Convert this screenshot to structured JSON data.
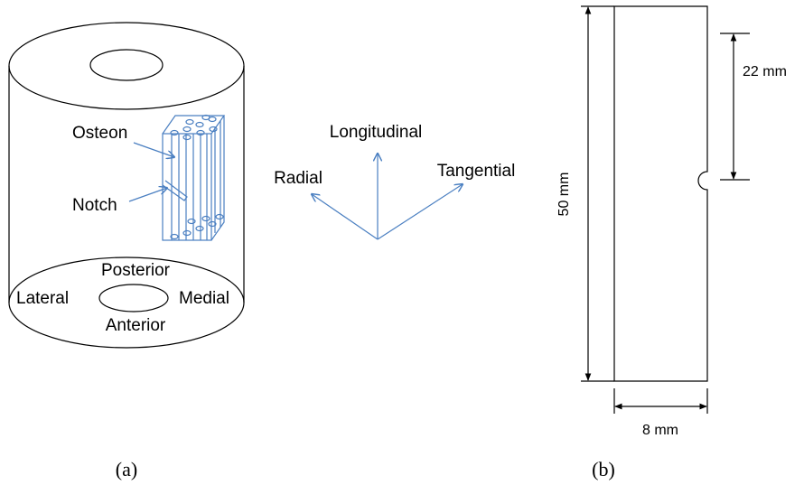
{
  "panel_a": {
    "labels": {
      "osteon": "Osteon",
      "notch": "Notch",
      "posterior": "Posterior",
      "lateral": "Lateral",
      "medial": "Medial",
      "anterior": "Anterior"
    },
    "axes": {
      "longitudinal": "Longitudinal",
      "radial": "Radial",
      "tangential": "Tangential"
    },
    "caption": "(a)"
  },
  "panel_b": {
    "dimensions": {
      "length": "50 mm",
      "notch_position": "22 mm",
      "width": "8 mm"
    },
    "caption": "(b)"
  }
}
